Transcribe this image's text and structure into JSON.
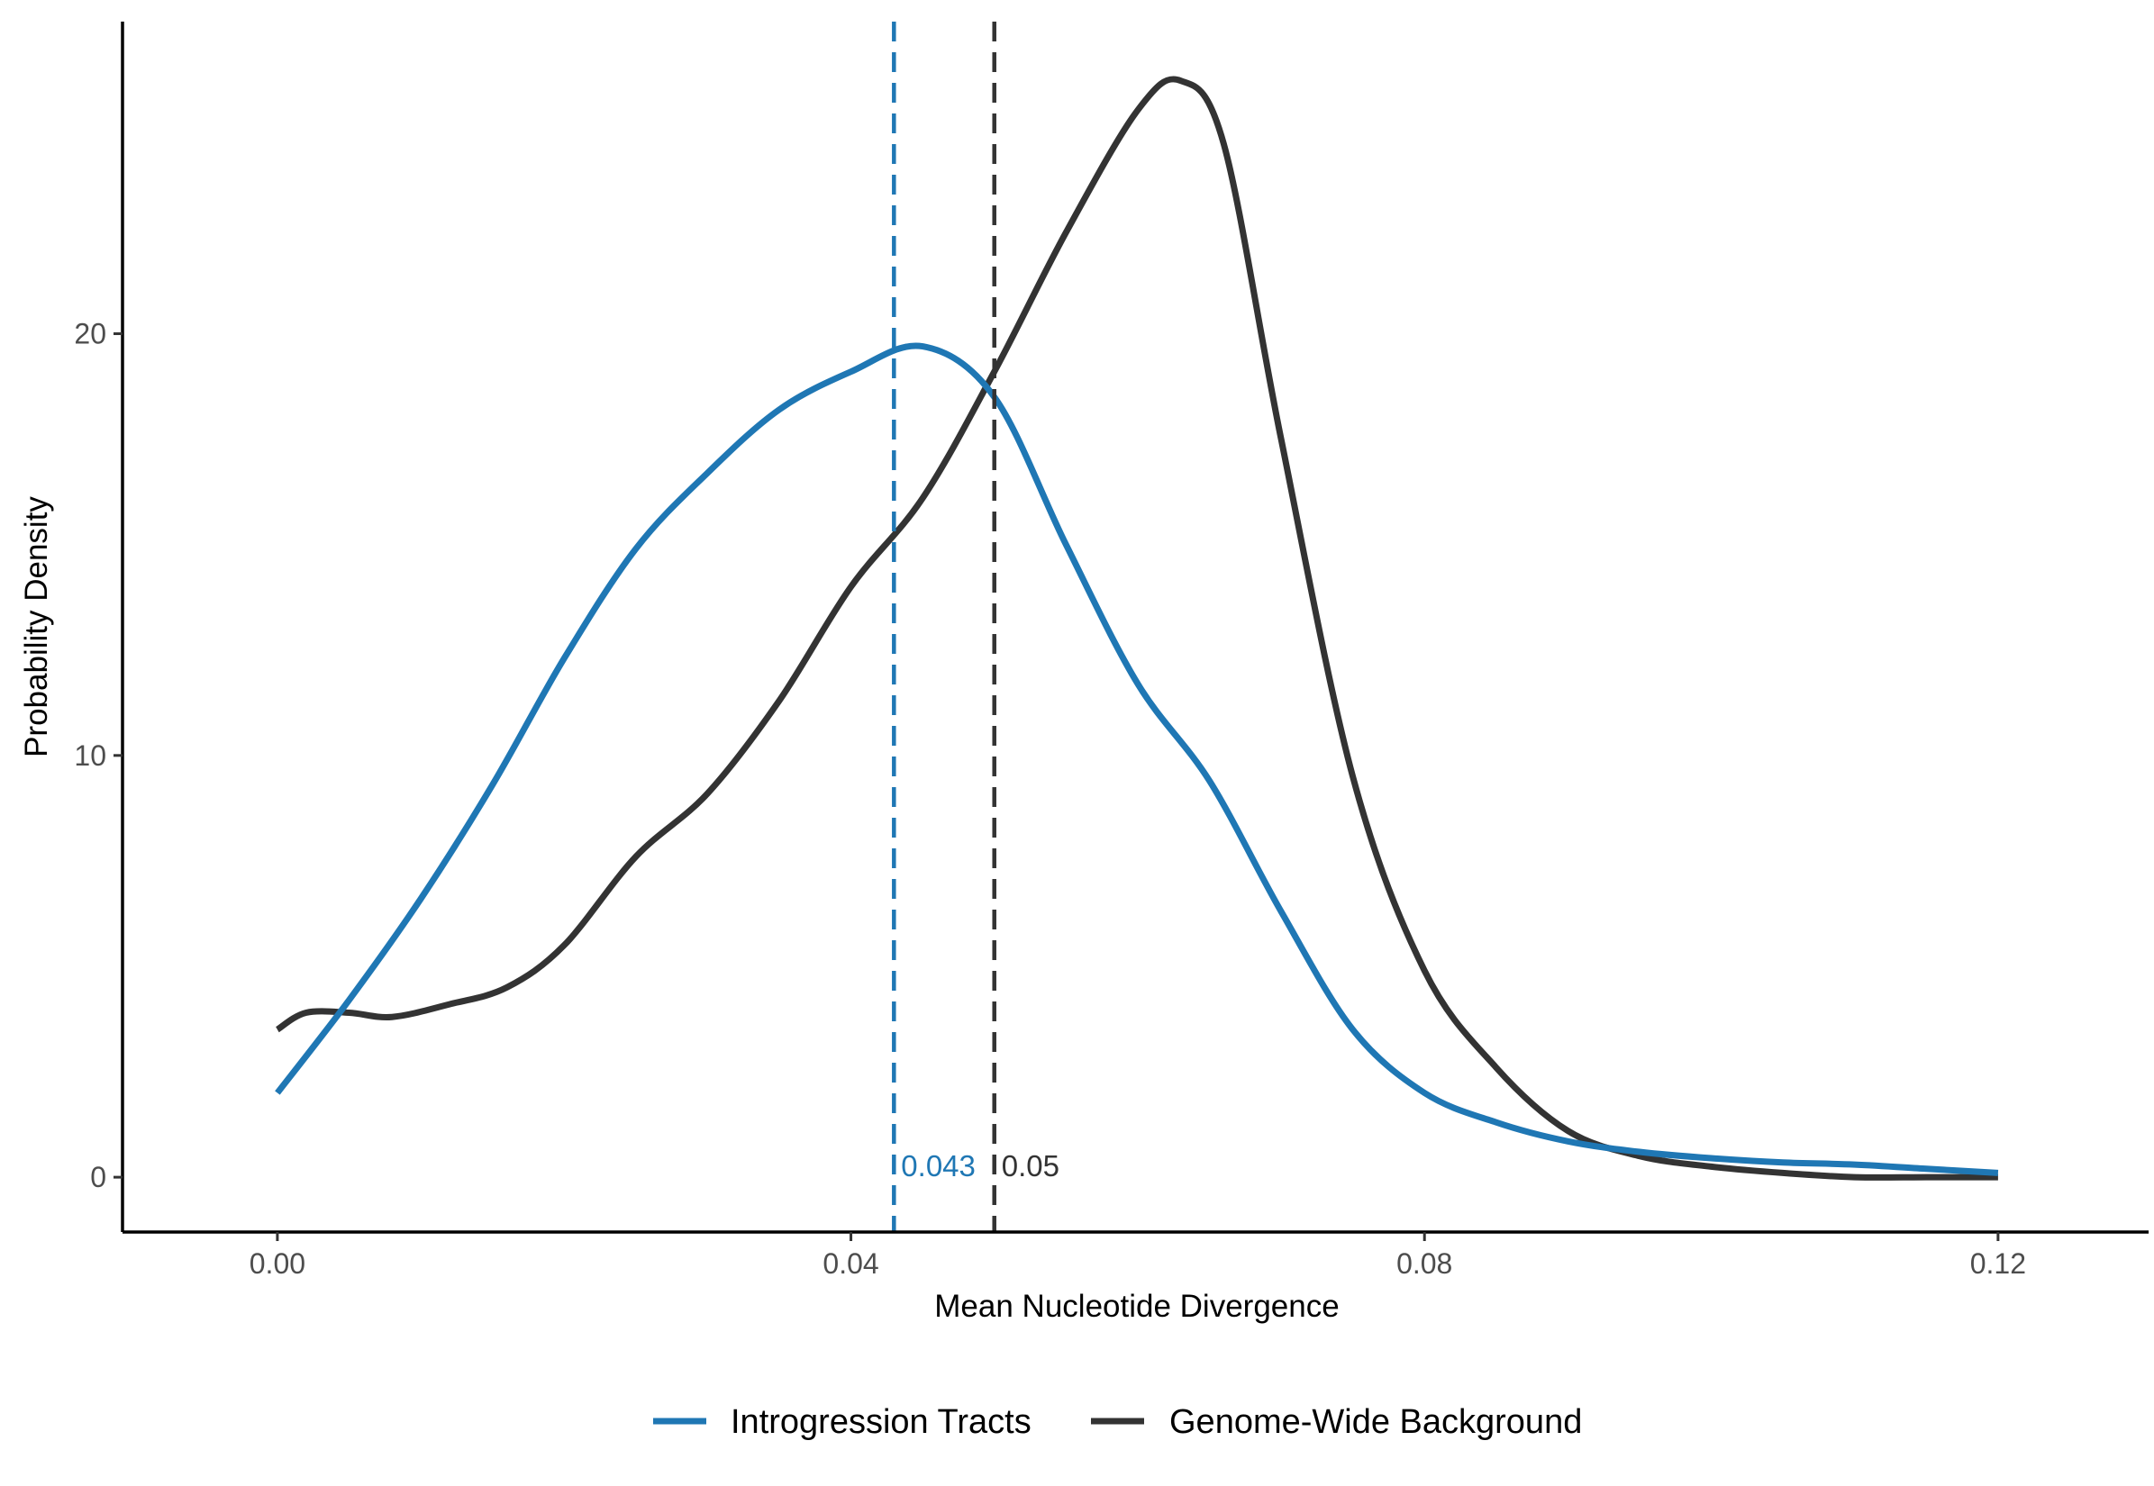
{
  "chart_data": {
    "type": "line",
    "title": "",
    "xlabel": "Mean Nucleotide Divergence",
    "ylabel": "Probability Density",
    "xlim": [
      -0.0108,
      0.1305
    ],
    "ylim": [
      -1.3,
      27.4
    ],
    "x_ticks": [
      0.0,
      0.04,
      0.08,
      0.12
    ],
    "x_tick_labels": [
      "0.00",
      "0.04",
      "0.08",
      "0.12"
    ],
    "y_ticks": [
      0,
      10,
      20
    ],
    "y_tick_labels": [
      "0",
      "10",
      "20"
    ],
    "grid": false,
    "legend_position": "bottom",
    "series": [
      {
        "name": "Introgression Tracts",
        "color": "#1f77b4",
        "x": [
          0.0,
          0.005,
          0.01,
          0.015,
          0.02,
          0.025,
          0.03,
          0.035,
          0.04,
          0.045,
          0.05,
          0.055,
          0.06,
          0.065,
          0.07,
          0.075,
          0.08,
          0.085,
          0.09,
          0.095,
          0.1,
          0.105,
          0.11,
          0.115,
          0.12
        ],
        "values": [
          2.0,
          4.2,
          6.6,
          9.3,
          12.3,
          14.9,
          16.7,
          18.2,
          19.1,
          19.7,
          18.5,
          15.0,
          11.7,
          9.4,
          6.3,
          3.5,
          2.0,
          1.3,
          0.85,
          0.6,
          0.45,
          0.35,
          0.3,
          0.2,
          0.1
        ]
      },
      {
        "name": "Genome-Wide Background",
        "color": "#333333",
        "x": [
          0.0,
          0.002,
          0.005,
          0.008,
          0.012,
          0.016,
          0.02,
          0.025,
          0.03,
          0.035,
          0.04,
          0.045,
          0.05,
          0.055,
          0.06,
          0.063,
          0.066,
          0.07,
          0.075,
          0.08,
          0.085,
          0.09,
          0.095,
          0.1,
          0.105,
          0.11,
          0.115,
          0.12
        ],
        "values": [
          3.5,
          3.9,
          3.9,
          3.8,
          4.1,
          4.5,
          5.5,
          7.6,
          9.1,
          11.3,
          14.0,
          16.1,
          19.1,
          22.4,
          25.3,
          26.0,
          24.5,
          17.5,
          9.5,
          4.9,
          2.6,
          1.1,
          0.5,
          0.25,
          0.1,
          0.0,
          0.0,
          0.0
        ]
      }
    ],
    "reference_lines": [
      {
        "series": "Introgression Tracts",
        "x": 0.043,
        "label": "0.043",
        "color": "#1f77b4",
        "style": "dashed"
      },
      {
        "series": "Genome-Wide Background",
        "x": 0.05,
        "label": "0.05",
        "color": "#333333",
        "style": "dashed"
      }
    ]
  }
}
